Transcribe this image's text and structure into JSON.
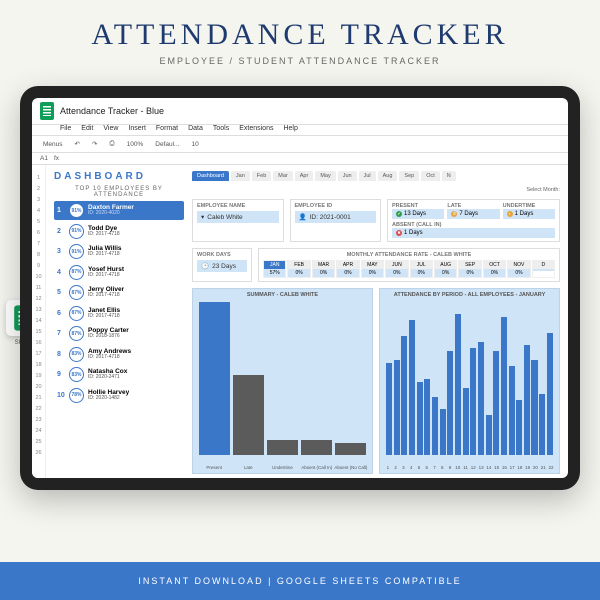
{
  "hero": {
    "title": "ATTENDANCE TRACKER",
    "subtitle": "EMPLOYEE / STUDENT ATTENDANCE TRACKER"
  },
  "doc": {
    "title": "Attendance Tracker - Blue"
  },
  "menu": [
    "File",
    "Edit",
    "View",
    "Insert",
    "Format",
    "Data",
    "Tools",
    "Extensions",
    "Help"
  ],
  "toolbar": {
    "menus": "Menus",
    "undo": "↶",
    "redo": "↷",
    "print": "⎙",
    "zoom": "100%",
    "font": "Defaul...",
    "size": "10"
  },
  "cellref": "A1",
  "rows": [
    1,
    2,
    3,
    4,
    5,
    6,
    7,
    8,
    9,
    10,
    11,
    12,
    13,
    14,
    15,
    16,
    17,
    18,
    19,
    20,
    21,
    22,
    23,
    24,
    25,
    26
  ],
  "dashboard": {
    "title": "DASHBOARD",
    "top10_label": "TOP 10 EMPLOYEES BY ATTENDANCE",
    "employees": [
      {
        "rank": 1,
        "pct": "91%",
        "name": "Daxton Farmer",
        "id": "ID: 2020-4020",
        "hl": true
      },
      {
        "rank": 2,
        "pct": "91%",
        "name": "Todd Dye",
        "id": "ID: 2017-4718"
      },
      {
        "rank": 3,
        "pct": "91%",
        "name": "Julia Willis",
        "id": "ID: 2017-4718"
      },
      {
        "rank": 4,
        "pct": "87%",
        "name": "Yosef Hurst",
        "id": "ID: 2017-4718"
      },
      {
        "rank": 5,
        "pct": "87%",
        "name": "Jerry Oliver",
        "id": "ID: 2017-4718"
      },
      {
        "rank": 6,
        "pct": "87%",
        "name": "Janet Ellis",
        "id": "ID: 2017-4718"
      },
      {
        "rank": 7,
        "pct": "87%",
        "name": "Poppy Carter",
        "id": "ID: 2018-1876"
      },
      {
        "rank": 8,
        "pct": "83%",
        "name": "Amy Andrews",
        "id": "ID: 2017-4718"
      },
      {
        "rank": 9,
        "pct": "83%",
        "name": "Natasha Cox",
        "id": "ID: 2020-2471"
      },
      {
        "rank": 10,
        "pct": "78%",
        "name": "Hollie Harvey",
        "id": "ID: 2020-1482"
      }
    ]
  },
  "tabs": {
    "active": "Dashboard",
    "months": [
      "Jan",
      "Feb",
      "Mar",
      "Apr",
      "May",
      "Jun",
      "Jul",
      "Aug",
      "Sep",
      "Oct",
      "N"
    ]
  },
  "select_month_label": "Select Month:",
  "info": {
    "emp_name_label": "EMPLOYEE NAME",
    "emp_name": "Caleb White",
    "emp_id_label": "EMPLOYEE ID",
    "emp_id": "ID: 2021-0001",
    "stats": [
      {
        "label": "PRESENT",
        "val": "13 Days",
        "color": "#2e9b4f",
        "icon": "✔"
      },
      {
        "label": "LATE",
        "val": "7 Days",
        "color": "#e8a33d",
        "icon": "⏱"
      },
      {
        "label": "UNDERTIME",
        "val": "1 Days",
        "color": "#e8a33d",
        "icon": "◐"
      },
      {
        "label": "ABSENT (CALL IN)",
        "val": "1 Days",
        "color": "#d94c4c",
        "icon": "✖"
      }
    ],
    "workdays_label": "WORK DAYS",
    "workdays": "23 Days"
  },
  "month_rate": {
    "title": "MONTHLY ATTENDANCE RATE - CALEB WHITE",
    "months": [
      "JAN",
      "FEB",
      "MAR",
      "APR",
      "MAY",
      "JUN",
      "JUL",
      "AUG",
      "SEP",
      "OCT",
      "NOV",
      "D"
    ],
    "values": [
      "57%",
      "0%",
      "0%",
      "0%",
      "0%",
      "0%",
      "0%",
      "0%",
      "0%",
      "0%",
      "0%",
      ""
    ],
    "active_idx": 0
  },
  "chart1": {
    "title": "SUMMARY - CALEB WHITE",
    "type": "bar",
    "bars": [
      {
        "label": "Present",
        "v": 100,
        "color": "#3b77c9"
      },
      {
        "label": "Late",
        "v": 52,
        "color": "#5b5b5b"
      },
      {
        "label": "Undertime",
        "v": 10,
        "color": "#5b5b5b"
      },
      {
        "label": "Absent (Call In)",
        "v": 10,
        "color": "#5b5b5b"
      },
      {
        "label": "Absent (No Call)",
        "v": 8,
        "color": "#5b5b5b"
      }
    ],
    "ymax": 15,
    "background": "#cfe4f7"
  },
  "chart2": {
    "title": "ATTENDANCE BY PERIOD - ALL EMPLOYEES - JANUARY",
    "type": "bar",
    "color": "#3b77c9",
    "background": "#cfe4f7",
    "bars": [
      60,
      62,
      78,
      88,
      48,
      50,
      38,
      30,
      68,
      92,
      44,
      70,
      74,
      26,
      68,
      90,
      58,
      36,
      72,
      62,
      40,
      80
    ]
  },
  "footer": "INSTANT DOWNLOAD | GOOGLE SHEETS COMPATIBLE",
  "badge": "Sheets"
}
